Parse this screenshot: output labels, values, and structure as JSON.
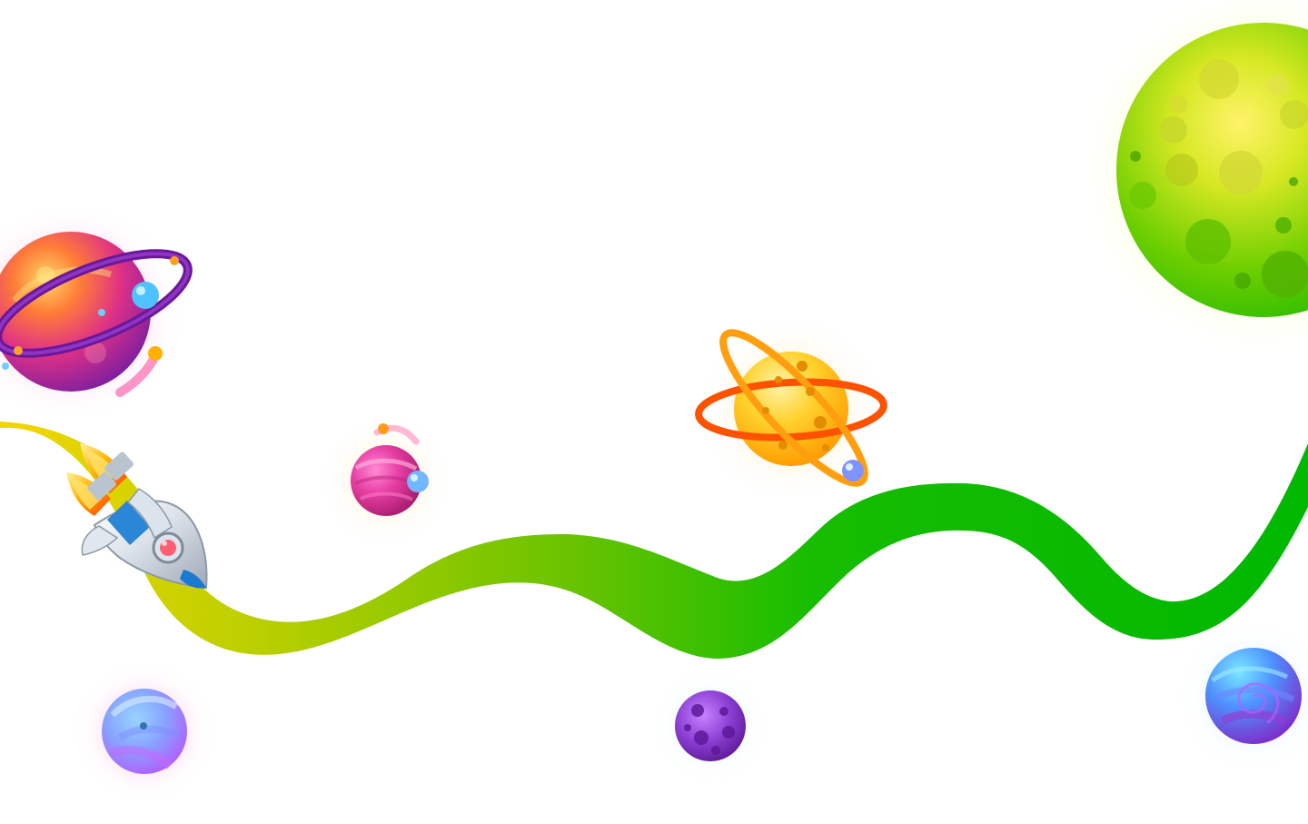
{
  "scene": {
    "background_color": "#ffffff",
    "path_gradient": [
      "#f4d600",
      "#b9cf00",
      "#6cc300",
      "#17bd00",
      "#00b800"
    ],
    "elements": [
      {
        "name": "rocket-icon",
        "kind": "rocket"
      },
      {
        "name": "ringed-planet-pink",
        "kind": "planet",
        "colors": [
          "#ff6d33",
          "#cf2f8f",
          "#7a1fa2"
        ]
      },
      {
        "name": "ringed-planet-orange",
        "kind": "planet",
        "colors": [
          "#ffe06b",
          "#ffb21f",
          "#ff4c00"
        ]
      },
      {
        "name": "moon-planet-green",
        "kind": "planet",
        "colors": [
          "#f0ea23",
          "#77d200",
          "#18b800"
        ]
      },
      {
        "name": "small-planet-magenta",
        "kind": "planet",
        "colors": [
          "#f24bb1",
          "#a9186e"
        ]
      },
      {
        "name": "small-planet-lilac",
        "kind": "planet",
        "colors": [
          "#86d4ff",
          "#b16cff",
          "#ff79b8"
        ]
      },
      {
        "name": "small-planet-purple",
        "kind": "planet",
        "colors": [
          "#9d4adf",
          "#6e1ea7"
        ]
      },
      {
        "name": "small-planet-blue",
        "kind": "planet",
        "colors": [
          "#5ad6ff",
          "#5c5ad8",
          "#7f2bc8"
        ]
      }
    ]
  }
}
